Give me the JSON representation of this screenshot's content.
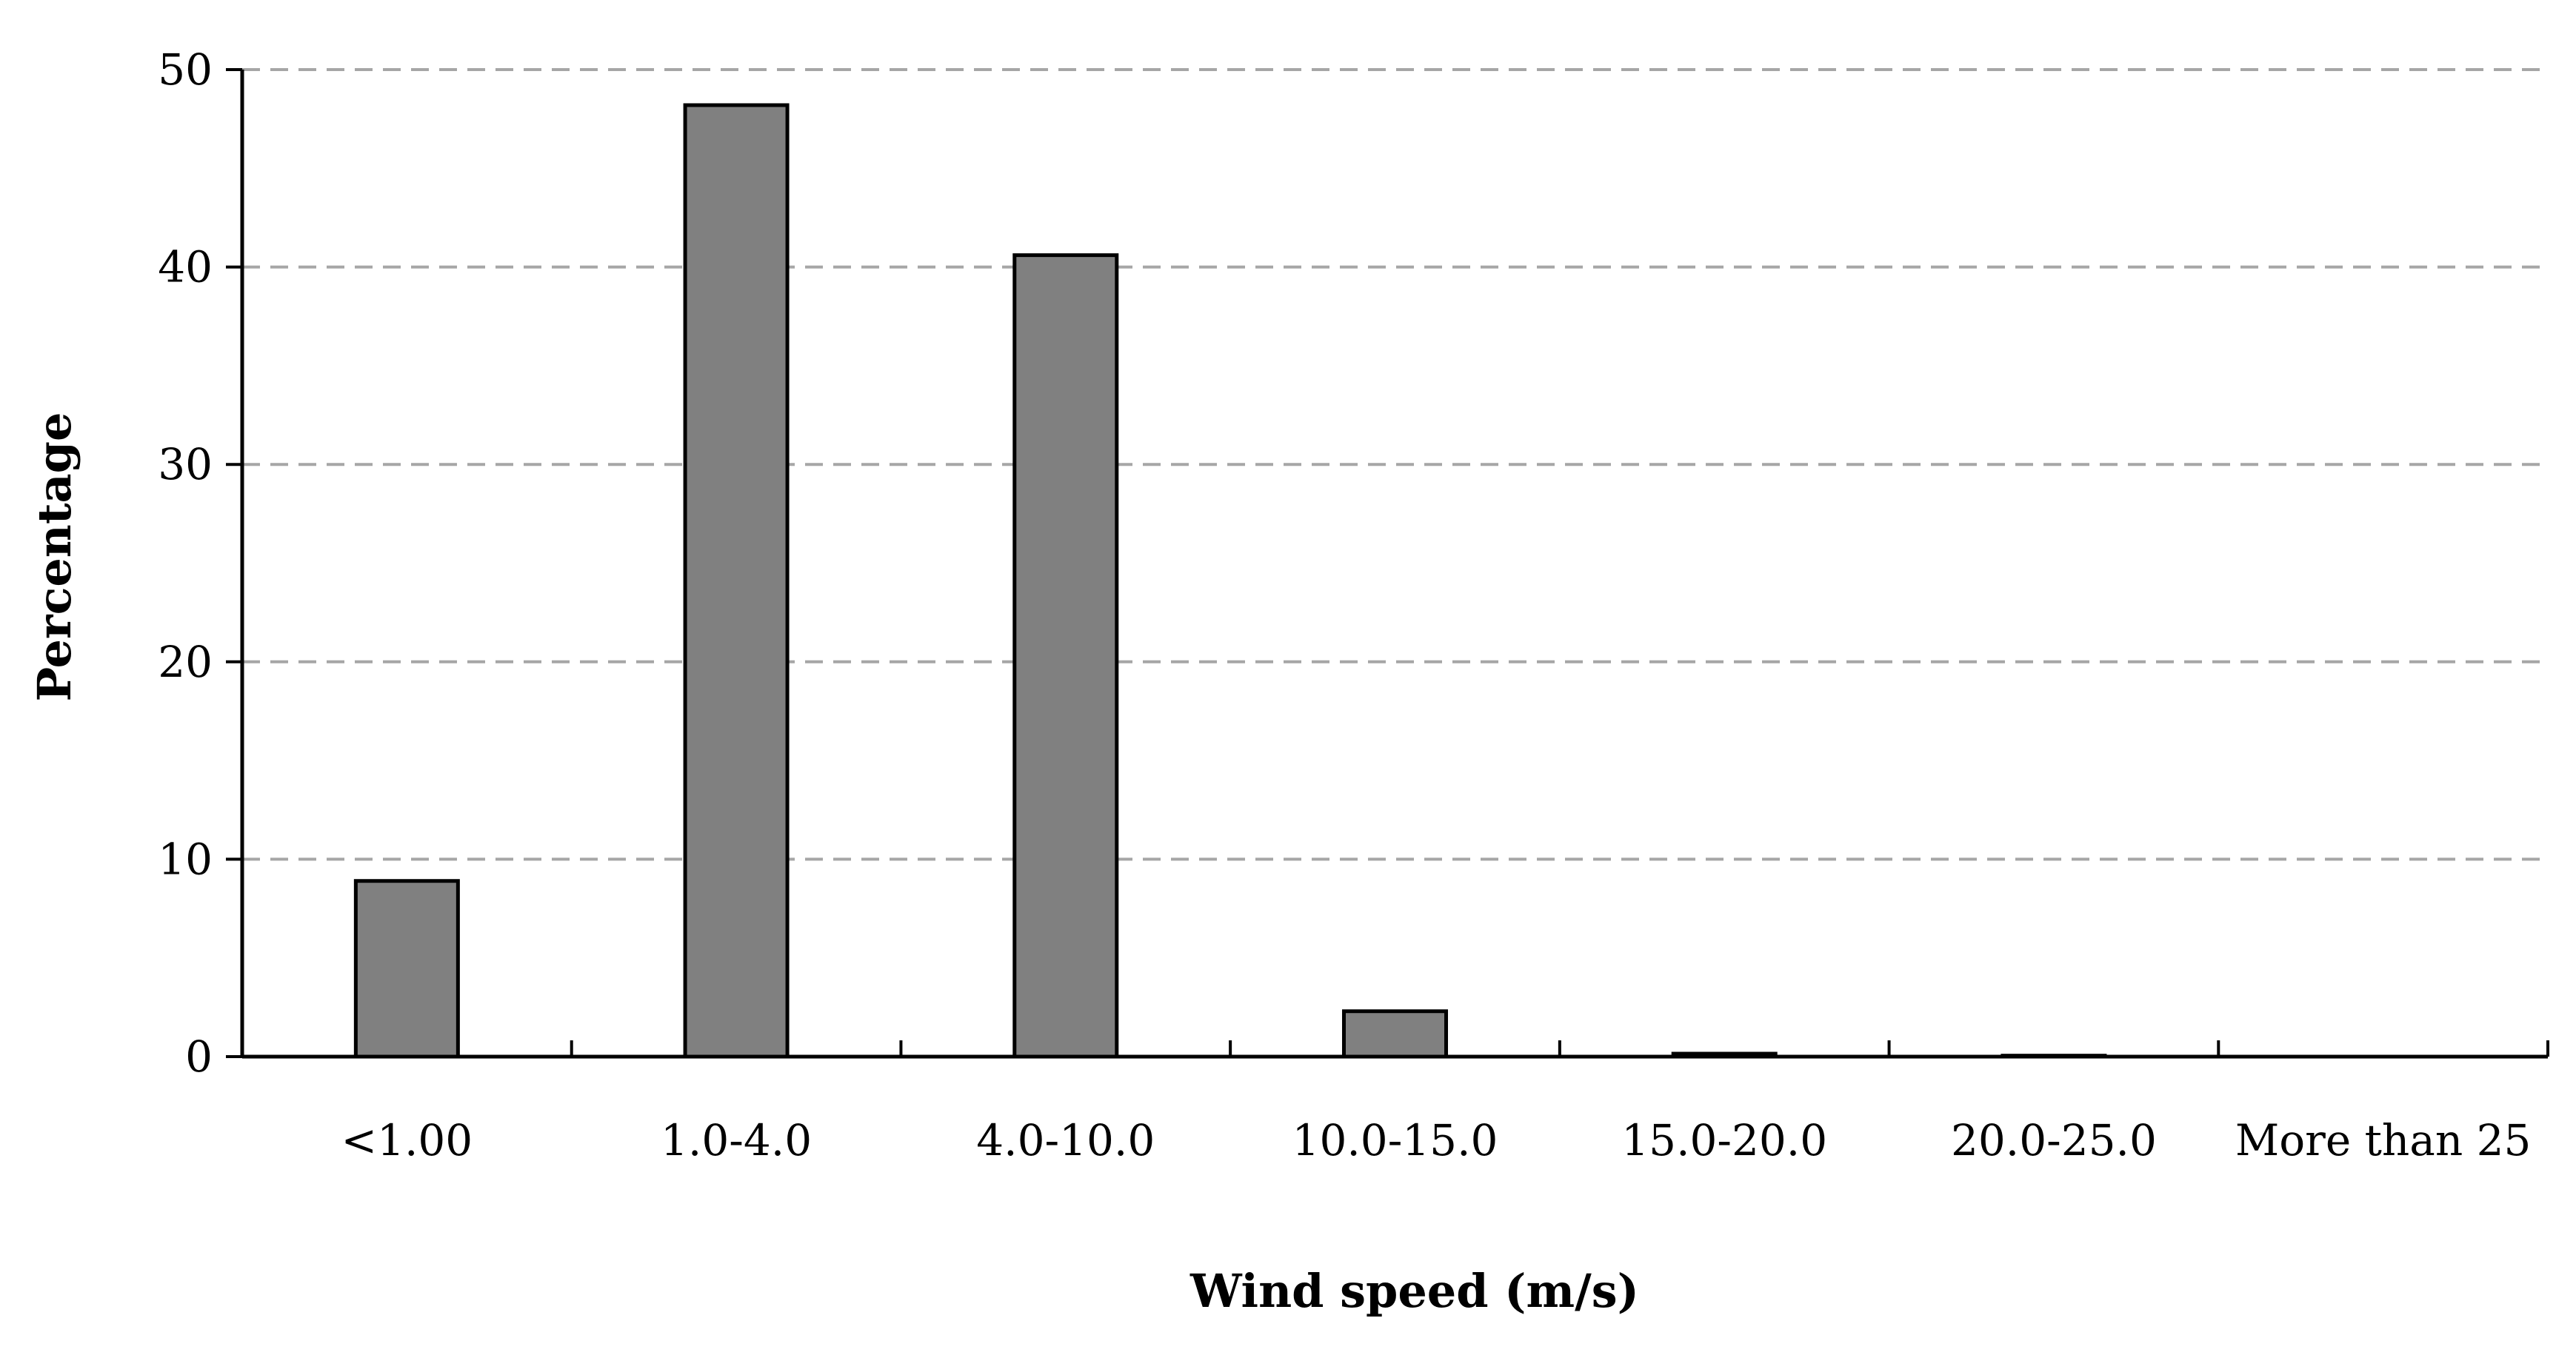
{
  "chart_data": {
    "type": "bar",
    "categories": [
      "<1.00",
      "1.0-4.0",
      "4.0-10.0",
      "10.0-15.0",
      "15.0-20.0",
      "20.0-25.0",
      "More than 25"
    ],
    "values": [
      8.9,
      48.2,
      40.6,
      2.3,
      0.15,
      0.05,
      0.0
    ],
    "title": "",
    "xlabel": "Wind speed (m/s)",
    "ylabel": "Percentage",
    "ylim": [
      0,
      50
    ],
    "yticks": [
      0,
      10,
      20,
      30,
      40,
      50
    ],
    "grid": "horizontal dashed",
    "legend": "none",
    "colors": {
      "bar_fill": "#808080",
      "bar_stroke": "#000000",
      "grid": "#a6a6a6",
      "axis": "#000000"
    }
  }
}
